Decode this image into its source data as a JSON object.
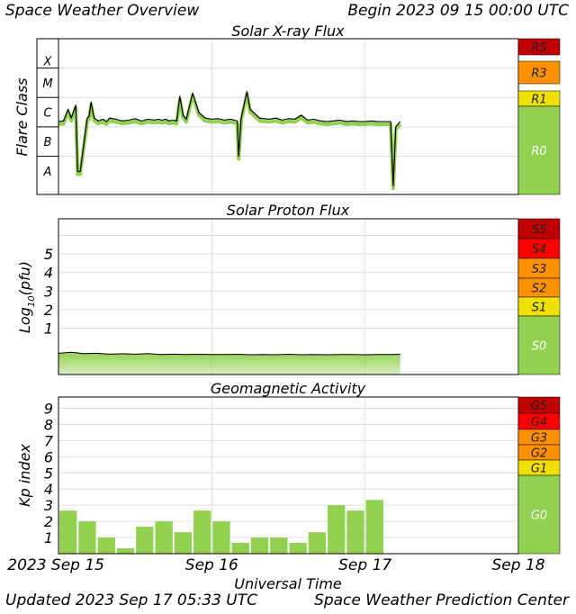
{
  "header": {
    "title": "Space Weather Overview",
    "begin": "Begin 2023 09 15 00:00 UTC"
  },
  "footer": {
    "updated": "Updated 2023 Sep 17 05:33 UTC",
    "center": "Space Weather Prediction Center"
  },
  "x_axis": {
    "label": "Universal Time",
    "ticks": [
      "2023 Sep 15",
      "Sep 16",
      "Sep 17",
      "Sep 18"
    ]
  },
  "colors": {
    "series": "#92d050",
    "trace": "#000000",
    "grid": "#dddddd",
    "level_green": "#92d050",
    "level_yellow": "#f0e000",
    "level_orange": "#ff9000",
    "level_red": "#ff0000",
    "level_darkred": "#c00000"
  },
  "chart_data": [
    {
      "type": "line",
      "title": "Solar X-ray Flux",
      "ylabel": "Flare Class",
      "y_scale": "log",
      "y_categories": [
        "A",
        "B",
        "C",
        "M",
        "X"
      ],
      "x_unit": "hours since 2023 Sep 15 00:00 UTC",
      "xlim": [
        0,
        72
      ],
      "series": [
        {
          "x": [
            0,
            0.8,
            1.5,
            2.0,
            2.7,
            3.0,
            3.4,
            4.5,
            4.8,
            5.1,
            5.4,
            5.6,
            6.2,
            7.0,
            7.5,
            8.0,
            9.0,
            10.0,
            11.0,
            12.0,
            13.0,
            14.0,
            15.0,
            15.5,
            16.2,
            16.8,
            17.3,
            17.9,
            18.5,
            19.0,
            19.5,
            20.0,
            21.0,
            22.0,
            23.0,
            24.0,
            25.0,
            26.0,
            27.0,
            28.0,
            28.2,
            28.6,
            29.5,
            30.0,
            31.0,
            31.5,
            32.0,
            33.0,
            34.0,
            35.0,
            36.0,
            37.0,
            38.0,
            39.0,
            40.0,
            41.0,
            42.0,
            43.0,
            44.0,
            45.0,
            46.0,
            47.0,
            48.0,
            49.0,
            50.0,
            51.0,
            52.0,
            52.4,
            52.8,
            53.5
          ],
          "class_values": [
            "C1.5",
            "C1.6",
            "C4.0",
            "C2.0",
            "C5.5",
            "A3",
            "A3",
            "C2.0",
            "C2.3",
            "C7.0",
            "C3.0",
            "C2.0",
            "C1.6",
            "C1.8",
            "C1.5",
            "C2.0",
            "C1.8",
            "C1.6",
            "C1.7",
            "C1.9",
            "C1.6",
            "C1.8",
            "C1.7",
            "C1.8",
            "C1.7",
            "C1.8",
            "C1.6",
            "C1.7",
            "C1.6",
            "M1.1",
            "C2.5",
            "C1.8",
            "M1.4",
            "C3.0",
            "C2.0",
            "C1.8",
            "C1.9",
            "C1.7",
            "C1.8",
            "C1.6",
            "B1",
            "C2.0",
            "M1.6",
            "C4.0",
            "C2.5",
            "C2.0",
            "C1.9",
            "C1.8",
            "C2.0",
            "C1.7",
            "C1.9",
            "C1.8",
            "C2.5",
            "C1.7",
            "C1.8",
            "C1.6",
            "C1.5",
            "C1.6",
            "C1.7",
            "C1.5",
            "C1.6",
            "C1.5",
            "C1.5",
            "C1.6",
            "C1.5",
            "C1.5",
            "C1.5",
            "A1",
            "C1.0",
            "C1.5"
          ],
          "y_log10_flux": [
            -5.82,
            -5.8,
            -5.4,
            -5.7,
            -5.26,
            -7.52,
            -7.52,
            -5.7,
            -5.64,
            -5.15,
            -5.52,
            -5.7,
            -5.8,
            -5.74,
            -5.82,
            -5.7,
            -5.74,
            -5.8,
            -5.77,
            -5.72,
            -5.8,
            -5.74,
            -5.77,
            -5.74,
            -5.77,
            -5.74,
            -5.8,
            -5.77,
            -5.8,
            -4.96,
            -5.6,
            -5.74,
            -4.85,
            -5.52,
            -5.7,
            -5.74,
            -5.72,
            -5.77,
            -5.74,
            -5.8,
            -7.0,
            -5.7,
            -4.8,
            -5.4,
            -5.6,
            -5.7,
            -5.72,
            -5.74,
            -5.7,
            -5.77,
            -5.72,
            -5.74,
            -5.6,
            -5.77,
            -5.74,
            -5.8,
            -5.82,
            -5.8,
            -5.77,
            -5.82,
            -5.8,
            -5.82,
            -5.82,
            -5.8,
            -5.82,
            -5.82,
            -5.82,
            -8.0,
            -6.0,
            -5.82
          ]
        }
      ],
      "scale_levels": [
        "R5",
        "R3",
        "R1",
        "R0"
      ],
      "ylim_log10": [
        -8.3,
        -3.0
      ]
    },
    {
      "type": "area",
      "title": "Solar Proton Flux",
      "ylabel": "Log10(pfu)",
      "ylabel_main": "Log",
      "ylabel_sub": "10",
      "ylabel_tail": "(pfu)",
      "yticks": [
        "1",
        "2",
        "3",
        "4",
        "5"
      ],
      "ylim": [
        -1.5,
        6.9
      ],
      "x_unit": "hours since 2023 Sep 15 00:00 UTC",
      "xlim": [
        0,
        72
      ],
      "series": [
        {
          "x": [
            0,
            2,
            4,
            6,
            8,
            10,
            12,
            14,
            16,
            18,
            20,
            22,
            24,
            26,
            28,
            30,
            32,
            34,
            36,
            38,
            40,
            42,
            44,
            46,
            48,
            50,
            52,
            53.5
          ],
          "y": [
            -0.35,
            -0.3,
            -0.37,
            -0.35,
            -0.4,
            -0.38,
            -0.4,
            -0.37,
            -0.42,
            -0.4,
            -0.42,
            -0.41,
            -0.42,
            -0.42,
            -0.41,
            -0.43,
            -0.42,
            -0.43,
            -0.41,
            -0.43,
            -0.42,
            -0.43,
            -0.42,
            -0.42,
            -0.43,
            -0.42,
            -0.42,
            -0.41
          ]
        }
      ],
      "scale_levels": [
        "S5",
        "S4",
        "S3",
        "S2",
        "S1",
        "S0"
      ]
    },
    {
      "type": "bar",
      "title": "Geomagnetic Activity",
      "ylabel": "Kp index",
      "yticks": [
        "1",
        "2",
        "3",
        "4",
        "5",
        "6",
        "7",
        "8",
        "9"
      ],
      "ylim": [
        0,
        9.7
      ],
      "x_unit": "3-hour interval start, hours since 2023 Sep 15 00:00 UTC",
      "xlim": [
        0,
        72
      ],
      "x": [
        0,
        3,
        6,
        9,
        12,
        15,
        18,
        21,
        24,
        27,
        30,
        33,
        36,
        39,
        42,
        45,
        48,
        51
      ],
      "values": [
        2.67,
        2.0,
        1.0,
        0.33,
        1.67,
        2.0,
        1.33,
        2.67,
        2.0,
        0.67,
        1.0,
        1.0,
        0.67,
        1.33,
        3.0,
        2.67,
        3.33,
        0
      ],
      "scale_levels": [
        "G5",
        "G4",
        "G3",
        "G2",
        "G1",
        "G0"
      ]
    }
  ]
}
